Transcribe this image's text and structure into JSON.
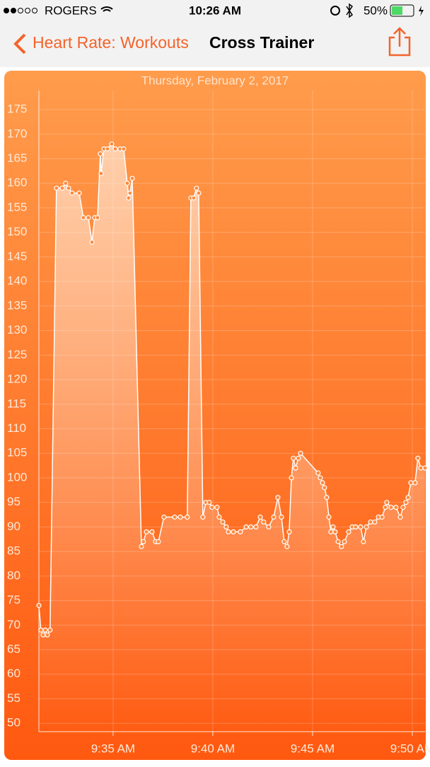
{
  "status_bar": {
    "carrier": "ROGERS",
    "time": "10:26 AM",
    "battery": "50%"
  },
  "nav": {
    "back": "Heart Rate: Workouts",
    "title": "Cross Trainer"
  },
  "chart_data": {
    "type": "line",
    "title": "Thursday, February 2, 2017",
    "color": "#ffffff",
    "grid": true,
    "x": [
      31.28,
      31.38,
      31.49,
      31.6,
      31.7,
      31.84,
      32.16,
      32.45,
      32.62,
      32.77,
      32.94,
      33.3,
      33.51,
      33.76,
      33.94,
      34.08,
      34.22,
      34.36,
      34.4,
      34.54,
      34.72,
      34.93,
      35.11,
      35.35,
      35.53,
      35.71,
      35.78,
      35.85,
      35.96,
      36.42,
      36.52,
      36.67,
      36.95,
      37.13,
      37.27,
      37.55,
      38.09,
      38.37,
      38.72,
      38.9,
      39.04,
      39.18,
      39.29,
      39.5,
      39.65,
      39.82,
      39.96,
      40.21,
      40.32,
      40.5,
      40.67,
      40.78,
      41.03,
      41.38,
      41.67,
      41.91,
      42.16,
      42.38,
      42.55,
      42.8,
      43.05,
      43.26,
      43.44,
      43.58,
      43.72,
      43.83,
      43.94,
      44.04,
      44.15,
      44.29,
      44.4,
      45.28,
      45.39,
      45.5,
      45.6,
      45.71,
      45.82,
      45.92,
      46.03,
      46.13,
      46.28,
      46.45,
      46.6,
      46.81,
      46.99,
      47.16,
      47.41,
      47.55,
      47.7,
      47.91,
      48.12,
      48.3,
      48.48,
      48.65,
      48.72,
      48.94,
      49.18,
      49.4,
      49.54,
      49.68,
      49.79,
      49.93,
      50.14,
      50.28,
      50.43,
      50.64
    ],
    "values": [
      74,
      69,
      68,
      69,
      68,
      69,
      159,
      159,
      160,
      159,
      158,
      158,
      153,
      153,
      148,
      153,
      153,
      166,
      162,
      167,
      167,
      168,
      167,
      167,
      167,
      160,
      157,
      158,
      161,
      86,
      87,
      89,
      89,
      87,
      87,
      92,
      92,
      92,
      92,
      157,
      157,
      159,
      158,
      92,
      95,
      95,
      94,
      94,
      92,
      91,
      90,
      89,
      89,
      89,
      90,
      90,
      90,
      92,
      91,
      90,
      92,
      96,
      92,
      87,
      86,
      89,
      100,
      104,
      102,
      104,
      105,
      101,
      100,
      99,
      98,
      96,
      92,
      89,
      90,
      89,
      87,
      86,
      87,
      89,
      90,
      90,
      90,
      87,
      90,
      91,
      91,
      92,
      92,
      94,
      95,
      94,
      94,
      92,
      94,
      95,
      96,
      99,
      99,
      104,
      102,
      102
    ],
    "xlim": [
      31.28,
      50.64
    ],
    "xticks": [
      {
        "value": 35,
        "label": "9:35 AM"
      },
      {
        "value": 40,
        "label": "9:40 AM"
      },
      {
        "value": 45,
        "label": "9:45 AM"
      },
      {
        "value": 50,
        "label": "9:50 AM"
      }
    ],
    "ylim": [
      48.3,
      178.9
    ],
    "yticks": [
      50,
      55,
      60,
      65,
      70,
      75,
      80,
      85,
      90,
      95,
      100,
      105,
      110,
      115,
      120,
      125,
      130,
      135,
      140,
      145,
      150,
      155,
      160,
      165,
      170,
      175
    ]
  }
}
